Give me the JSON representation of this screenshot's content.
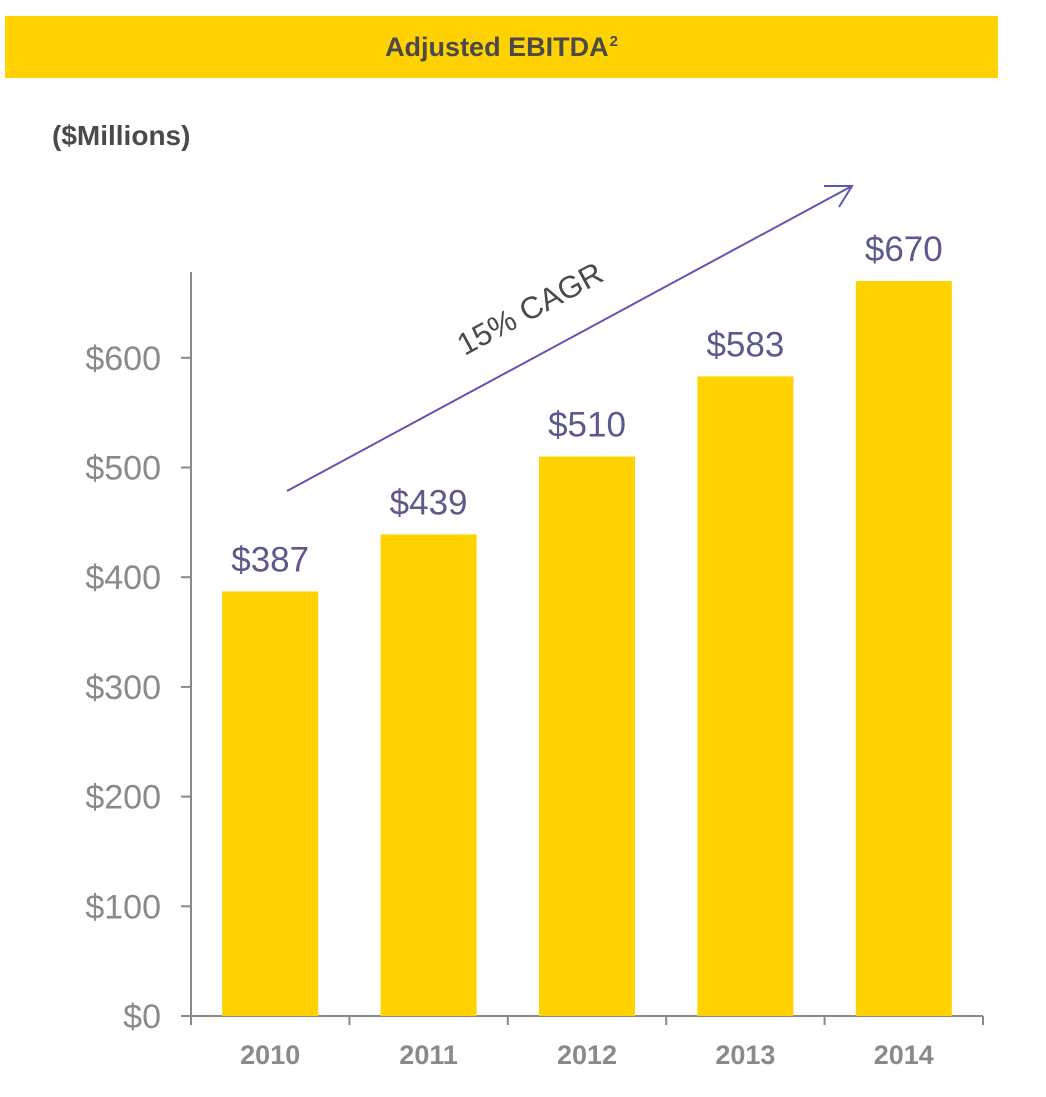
{
  "header": {
    "title": "Adjusted EBITDA",
    "title_superscript": "2",
    "units": "($Millions)"
  },
  "colors": {
    "bar": "#FFD200",
    "banner": "#FFD200",
    "data_label": "#5B5A8C",
    "arrow": "#5B57B5",
    "axis": "#8A8A8A"
  },
  "chart_data": {
    "type": "bar",
    "title": "Adjusted EBITDA",
    "ylabel": "($Millions)",
    "categories": [
      "2010",
      "2011",
      "2012",
      "2013",
      "2014"
    ],
    "values": [
      387,
      439,
      510,
      583,
      670
    ],
    "data_labels": [
      "$387",
      "$439",
      "$510",
      "$583",
      "$670"
    ],
    "yticks": [
      0,
      100,
      200,
      300,
      400,
      500,
      600
    ],
    "ytick_labels": [
      "$0",
      "$100",
      "$200",
      "$300",
      "$400",
      "$500",
      "$600"
    ],
    "ylim": [
      0,
      700
    ],
    "grid": false,
    "annotation": "15% CAGR"
  }
}
